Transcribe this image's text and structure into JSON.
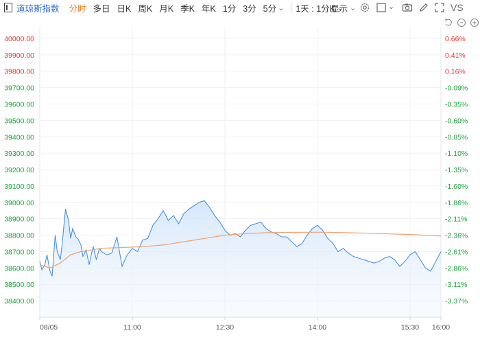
{
  "toolbar": {
    "symbol_name": "道琼斯指数",
    "timeframes": [
      {
        "label": "分时",
        "active": true,
        "dropdown": false
      },
      {
        "label": "多日",
        "active": false,
        "dropdown": false
      },
      {
        "label": "日K",
        "active": false,
        "dropdown": false
      },
      {
        "label": "周K",
        "active": false,
        "dropdown": false
      },
      {
        "label": "月K",
        "active": false,
        "dropdown": false
      },
      {
        "label": "季K",
        "active": false,
        "dropdown": false
      },
      {
        "label": "年K",
        "active": false,
        "dropdown": false
      },
      {
        "label": "1分",
        "active": false,
        "dropdown": false
      },
      {
        "label": "3分",
        "active": false,
        "dropdown": false
      },
      {
        "label": "5分",
        "active": false,
        "dropdown": true
      },
      {
        "label": "1天 : 1分K",
        "active": false,
        "dropdown": true
      }
    ],
    "show_label": "显示",
    "icons": [
      "settings-icon",
      "checkbox-icon",
      "camera-icon",
      "pencil-icon",
      "fullscreen-icon"
    ],
    "compare_label": "VS",
    "mini_icons": [
      "undo-icon",
      "zoom-out-icon",
      "zoom-in-icon"
    ]
  },
  "colors": {
    "accent": "#f47c20",
    "link": "#2f6fd6",
    "price_line": "#4a90e2",
    "avg_line": "#f0a070",
    "up": "#e8322e",
    "down": "#1aa33a"
  },
  "chart_data": {
    "type": "area",
    "title": "",
    "xlabel": "",
    "ylabel": "",
    "x_tick_labels": [
      "08/05",
      "11:00",
      "12:30",
      "14:00",
      "15:30",
      "16:00"
    ],
    "x_tick_minutes": [
      0,
      90,
      180,
      270,
      360,
      390
    ],
    "x_range": [
      0,
      390
    ],
    "ylim": [
      38300,
      40050
    ],
    "y_ticks": [
      "40000.00",
      "39900.00",
      "39800.00",
      "39700.00",
      "39600.00",
      "39500.00",
      "39400.00",
      "39300.00",
      "39200.00",
      "39100.00",
      "39000.00",
      "38900.00",
      "38800.00",
      "38700.00",
      "38600.00",
      "38500.00",
      "38400.00"
    ],
    "y_tick_values": [
      40000,
      39900,
      39800,
      39700,
      39600,
      39500,
      39400,
      39300,
      39200,
      39100,
      39000,
      38900,
      38800,
      38700,
      38600,
      38500,
      38400
    ],
    "pct_ticks": [
      "0.66%",
      "0.41%",
      "0.16%",
      "-0.09%",
      "-0.35%",
      "-0.60%",
      "-0.85%",
      "-1.10%",
      "-1.35%",
      "-1.60%",
      "-1.86%",
      "-2.11%",
      "-2.36%",
      "-2.61%",
      "-2.86%",
      "-3.11%",
      "-3.37%"
    ],
    "grid": true,
    "series": [
      {
        "key": "price",
        "x": [
          0,
          2,
          5,
          7,
          10,
          12,
          15,
          17,
          20,
          22,
          25,
          28,
          30,
          32,
          35,
          37,
          40,
          42,
          45,
          48,
          50,
          52,
          55,
          58,
          60,
          65,
          70,
          75,
          80,
          85,
          90,
          95,
          100,
          105,
          110,
          115,
          120,
          125,
          130,
          135,
          140,
          145,
          150,
          155,
          160,
          165,
          170,
          175,
          180,
          185,
          190,
          195,
          200,
          205,
          210,
          215,
          220,
          225,
          230,
          235,
          240,
          245,
          250,
          255,
          260,
          265,
          270,
          275,
          280,
          285,
          290,
          295,
          300,
          305,
          310,
          315,
          320,
          325,
          330,
          335,
          340,
          345,
          350,
          355,
          360,
          365,
          370,
          375,
          380,
          385,
          390
        ],
        "values": [
          38640,
          38590,
          38620,
          38680,
          38580,
          38550,
          38800,
          38700,
          38650,
          38760,
          38960,
          38890,
          38780,
          38840,
          38790,
          38780,
          38740,
          38670,
          38710,
          38620,
          38680,
          38730,
          38650,
          38720,
          38700,
          38680,
          38690,
          38790,
          38610,
          38680,
          38720,
          38700,
          38770,
          38780,
          38860,
          38900,
          38950,
          38890,
          38920,
          38870,
          38930,
          38960,
          38980,
          39000,
          39010,
          38970,
          38920,
          38880,
          38830,
          38800,
          38810,
          38790,
          38830,
          38860,
          38870,
          38880,
          38840,
          38820,
          38810,
          38790,
          38790,
          38760,
          38730,
          38750,
          38800,
          38840,
          38860,
          38830,
          38780,
          38750,
          38700,
          38720,
          38690,
          38670,
          38660,
          38650,
          38640,
          38630,
          38640,
          38660,
          38670,
          38650,
          38610,
          38640,
          38680,
          38700,
          38650,
          38600,
          38580,
          38640,
          38700
        ]
      },
      {
        "key": "average",
        "x": [
          0,
          10,
          20,
          30,
          40,
          50,
          60,
          80,
          100,
          120,
          140,
          160,
          180,
          200,
          220,
          240,
          260,
          280,
          300,
          320,
          340,
          360,
          380,
          390
        ],
        "values": [
          38620,
          38600,
          38630,
          38680,
          38700,
          38710,
          38720,
          38725,
          38730,
          38740,
          38760,
          38780,
          38800,
          38810,
          38815,
          38817,
          38818,
          38818,
          38815,
          38812,
          38808,
          38804,
          38798,
          38795
        ]
      }
    ]
  }
}
